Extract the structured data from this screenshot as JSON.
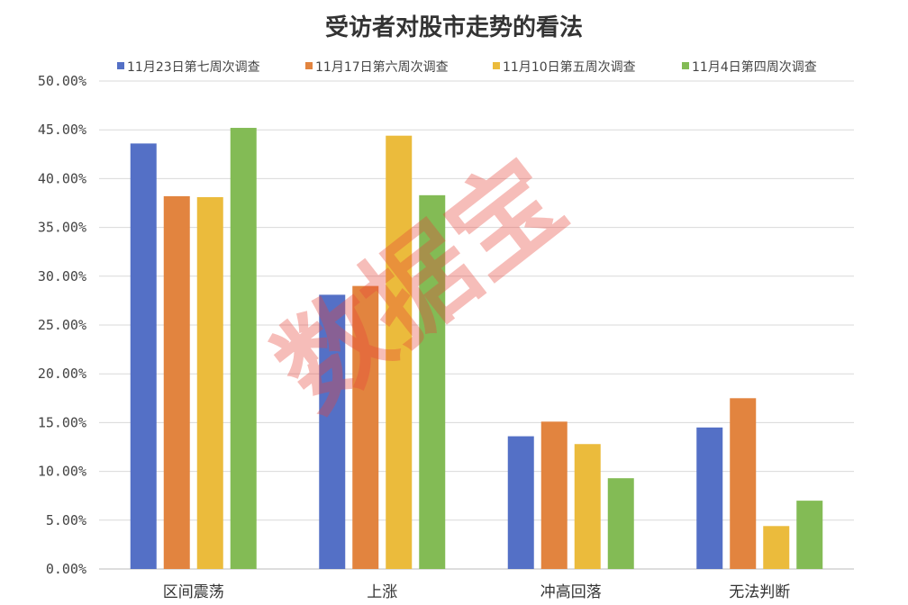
{
  "chart_data": {
    "type": "bar",
    "title": "受访者对股市走势的看法",
    "categories": [
      "区间震荡",
      "上涨",
      "冲高回落",
      "无法判断"
    ],
    "series": [
      {
        "name": "11月23日第七周次调查",
        "color": "#5470c6",
        "values": [
          43.6,
          28.1,
          13.6,
          14.5
        ]
      },
      {
        "name": "11月17日第六周次调查",
        "color": "#e2843f",
        "values": [
          38.2,
          29.0,
          15.1,
          17.5
        ]
      },
      {
        "name": "11月10日第五周次调查",
        "color": "#ebbb3c",
        "values": [
          38.1,
          44.4,
          12.8,
          4.4
        ]
      },
      {
        "name": "11月4日第四周次调查",
        "color": "#83bb55",
        "values": [
          45.2,
          38.3,
          9.3,
          7.0
        ]
      }
    ],
    "ylim": [
      0,
      50
    ],
    "yticks": [
      "0.00%",
      "5.00%",
      "10.00%",
      "15.00%",
      "20.00%",
      "25.00%",
      "30.00%",
      "35.00%",
      "40.00%",
      "45.00%",
      "50.00%"
    ],
    "xlabel": "",
    "ylabel": "",
    "grid": true,
    "legend_position": "top"
  },
  "watermark": "数据宝"
}
